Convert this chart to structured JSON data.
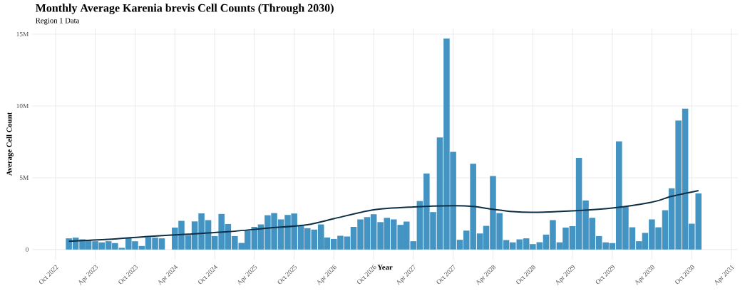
{
  "chart_data": {
    "type": "bar",
    "title": "Monthly Average Karenia brevis Cell Counts (Through 2030)",
    "subtitle": "Region 1 Data",
    "xlabel": "Year",
    "ylabel": "Average Cell Count",
    "x": [
      "2022-12",
      "2023-01",
      "2023-02",
      "2023-03",
      "2023-04",
      "2023-05",
      "2023-06",
      "2023-07",
      "2023-08",
      "2023-09",
      "2023-10",
      "2023-11",
      "2023-12",
      "2024-01",
      "2024-02",
      "2024-03",
      "2024-04",
      "2024-05",
      "2024-06",
      "2024-07",
      "2024-08",
      "2024-09",
      "2024-10",
      "2024-11",
      "2024-12",
      "2025-01",
      "2025-02",
      "2025-03",
      "2025-04",
      "2025-05",
      "2025-06",
      "2025-07",
      "2025-08",
      "2025-09",
      "2025-10",
      "2025-11",
      "2025-12",
      "2026-01",
      "2026-02",
      "2026-03",
      "2026-04",
      "2026-05",
      "2026-06",
      "2026-07",
      "2026-08",
      "2026-09",
      "2026-10",
      "2026-11",
      "2026-12",
      "2027-01",
      "2027-02",
      "2027-03",
      "2027-04",
      "2027-05",
      "2027-06",
      "2027-07",
      "2027-08",
      "2027-09",
      "2027-10",
      "2027-11",
      "2027-12",
      "2028-01",
      "2028-02",
      "2028-03",
      "2028-04",
      "2028-05",
      "2028-06",
      "2028-07",
      "2028-08",
      "2028-09",
      "2028-10",
      "2028-11",
      "2028-12",
      "2029-01",
      "2029-02",
      "2029-03",
      "2029-04",
      "2029-05",
      "2029-06",
      "2029-07",
      "2029-08",
      "2029-09",
      "2029-10",
      "2029-11",
      "2029-12",
      "2030-01",
      "2030-02",
      "2030-03",
      "2030-04",
      "2030-05",
      "2030-06",
      "2030-07",
      "2030-08",
      "2030-09",
      "2030-10",
      "2030-11"
    ],
    "series": [
      {
        "color": "#4393c3",
        "values": [
          780000,
          830000,
          710000,
          660000,
          580000,
          500000,
          580000,
          450000,
          120000,
          830000,
          580000,
          250000,
          860000,
          830000,
          780000,
          null,
          1530000,
          2000000,
          1000000,
          1960000,
          2520000,
          2050000,
          940000,
          2480000,
          1780000,
          940000,
          460000,
          1320000,
          1580000,
          1750000,
          2390000,
          2540000,
          2100000,
          2410000,
          2510000,
          1650000,
          1490000,
          1390000,
          1750000,
          840000,
          740000,
          960000,
          910000,
          1580000,
          2100000,
          2260000,
          2460000,
          1910000,
          2210000,
          2100000,
          1720000,
          1950000,
          580000,
          3380000,
          5300000,
          2610000,
          7810000,
          14690000,
          6800000,
          680000,
          1320000,
          5970000,
          1120000,
          1650000,
          5120000,
          2540000,
          660000,
          500000,
          710000,
          780000,
          380000,
          510000,
          1040000,
          2050000,
          500000,
          1530000,
          1630000,
          6390000,
          3420000,
          2210000,
          940000,
          500000,
          450000,
          7540000,
          3000000,
          1550000,
          580000,
          1160000,
          2100000,
          1550000,
          2740000,
          4270000,
          8980000,
          9820000,
          1800000,
          3910000
        ]
      },
      {
        "type": "line",
        "color": "#0d2f45",
        "x": [
          "2022-12",
          "2023-06",
          "2023-12",
          "2024-06",
          "2024-12",
          "2025-06",
          "2025-12",
          "2026-04",
          "2026-10",
          "2027-04",
          "2027-10",
          "2028-01",
          "2028-04",
          "2028-07",
          "2028-10",
          "2029-04",
          "2029-10",
          "2030-04",
          "2030-07",
          "2030-11"
        ],
        "values": [
          580000,
          710000,
          910000,
          1070000,
          1240000,
          1490000,
          1730000,
          2150000,
          2770000,
          2970000,
          3050000,
          3000000,
          2800000,
          2640000,
          2590000,
          2690000,
          2890000,
          3300000,
          3710000,
          4110000
        ]
      }
    ],
    "xlim": [
      "2022-06-15",
      "2031-05-01"
    ],
    "xticks": [
      {
        "value": "2022-10-01",
        "label": "Oct 2022"
      },
      {
        "value": "2023-04-01",
        "label": "Apr 2023"
      },
      {
        "value": "2023-10-01",
        "label": "Oct 2023"
      },
      {
        "value": "2024-04-01",
        "label": "Apr 2024"
      },
      {
        "value": "2024-10-01",
        "label": "Oct 2024"
      },
      {
        "value": "2025-04-01",
        "label": "Apr 2025"
      },
      {
        "value": "2025-10-01",
        "label": "Oct 2025"
      },
      {
        "value": "2026-04-01",
        "label": "Apr 2026"
      },
      {
        "value": "2026-10-01",
        "label": "Oct 2026"
      },
      {
        "value": "2027-04-01",
        "label": "Apr 2027"
      },
      {
        "value": "2027-10-01",
        "label": "Oct 2027"
      },
      {
        "value": "2028-04-01",
        "label": "Apr 2028"
      },
      {
        "value": "2028-10-01",
        "label": "Oct 2028"
      },
      {
        "value": "2029-04-01",
        "label": "Apr 2029"
      },
      {
        "value": "2029-10-01",
        "label": "Oct 2029"
      },
      {
        "value": "2030-04-01",
        "label": "Apr 2030"
      },
      {
        "value": "2030-10-01",
        "label": "Oct 2030"
      },
      {
        "value": "2031-04-01",
        "label": "Apr 2031"
      }
    ],
    "ylim": [
      -700000,
      15400000
    ],
    "yticks": [
      {
        "value": 0,
        "label": "0"
      },
      {
        "value": 5000000,
        "label": "5M"
      },
      {
        "value": 10000000,
        "label": "10M"
      },
      {
        "value": 15000000,
        "label": "15M"
      }
    ],
    "grid": true
  }
}
